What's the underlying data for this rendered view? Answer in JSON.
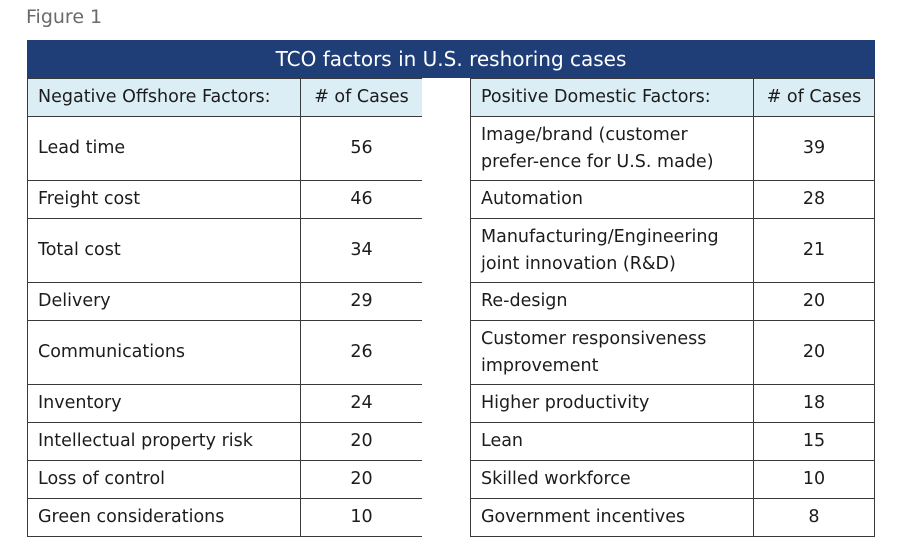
{
  "figure_label": "Figure 1",
  "title": "TCO factors in U.S. reshoring cases",
  "negative": {
    "header": "Negative Offshore Factors:",
    "count_header": "# of Cases",
    "rows": [
      {
        "label": "Lead time",
        "count": "56"
      },
      {
        "label": "Freight cost",
        "count": "46"
      },
      {
        "label": "Total cost",
        "count": "34"
      },
      {
        "label": "Delivery",
        "count": "29"
      },
      {
        "label": "Communications",
        "count": "26"
      },
      {
        "label": "Inventory",
        "count": "24"
      },
      {
        "label": "Intellectual property risk",
        "count": "20"
      },
      {
        "label": "Loss of control",
        "count": "20"
      },
      {
        "label": "Green considerations",
        "count": "10"
      }
    ]
  },
  "positive": {
    "header": "Positive Domestic Factors:",
    "count_header": "# of Cases",
    "rows": [
      {
        "label": "Image/brand (customer prefer-ence for U.S. made)",
        "count": "39"
      },
      {
        "label": "Automation",
        "count": "28"
      },
      {
        "label": "Manufacturing/Engineering joint innovation (R&D)",
        "count": "21"
      },
      {
        "label": "Re-design",
        "count": "20"
      },
      {
        "label": "Customer responsiveness improvement",
        "count": "20"
      },
      {
        "label": "Higher productivity",
        "count": "18"
      },
      {
        "label": "Lean",
        "count": "15"
      },
      {
        "label": "Skilled workforce",
        "count": "10"
      },
      {
        "label": "Government incentives",
        "count": "8"
      }
    ]
  }
}
